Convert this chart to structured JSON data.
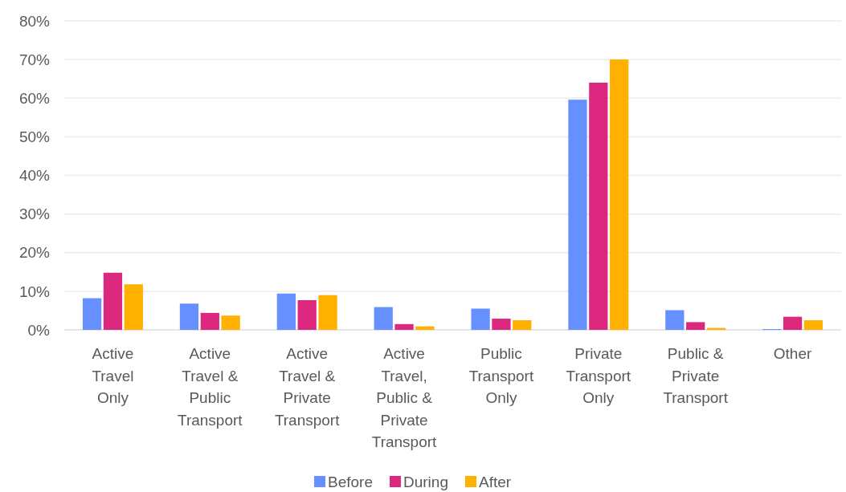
{
  "chart_data": {
    "type": "bar",
    "categories": [
      "Active Travel Only",
      "Active Travel & Public Transport",
      "Active Travel & Private Transport",
      "Active Travel, Public & Private Transport",
      "Public Transport Only",
      "Private Transport Only",
      "Public & Private Transport",
      "Other"
    ],
    "series": [
      {
        "name": "Before",
        "color": "#6690ff",
        "values": [
          8.2,
          6.8,
          9.4,
          5.9,
          5.5,
          59.6,
          5.1,
          0.2
        ]
      },
      {
        "name": "During",
        "color": "#dd287f",
        "values": [
          14.8,
          4.4,
          7.7,
          1.5,
          2.9,
          64.0,
          2.0,
          3.4
        ]
      },
      {
        "name": "After",
        "color": "#ffb000",
        "values": [
          11.8,
          3.7,
          9.0,
          0.9,
          2.5,
          70.0,
          0.5,
          2.5
        ]
      }
    ],
    "ylim": [
      0,
      80
    ],
    "yticks": [
      {
        "value": 0,
        "label": "0%"
      },
      {
        "value": 10,
        "label": "10%"
      },
      {
        "value": 20,
        "label": "20%"
      },
      {
        "value": 30,
        "label": "30%"
      },
      {
        "value": 40,
        "label": "40%"
      },
      {
        "value": 50,
        "label": "50%"
      },
      {
        "value": 60,
        "label": "60%"
      },
      {
        "value": 70,
        "label": "70%"
      },
      {
        "value": 80,
        "label": "80%"
      }
    ],
    "grid": "y",
    "legend": "bottom"
  }
}
